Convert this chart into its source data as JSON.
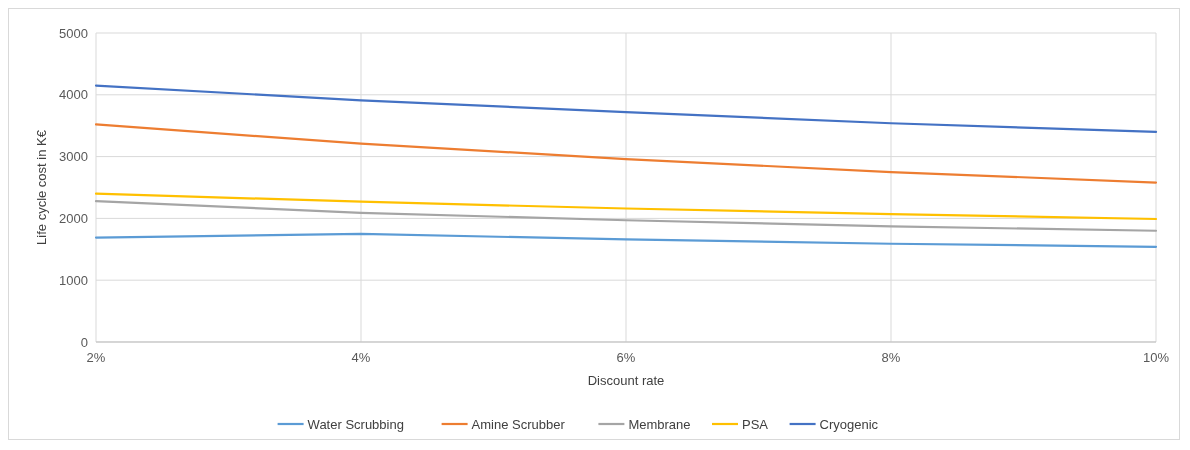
{
  "chart_data": {
    "type": "line",
    "xlabel": "Discount rate",
    "ylabel": "Life cycle cost in K€",
    "categories": [
      "2%",
      "4%",
      "6%",
      "8%",
      "10%"
    ],
    "series": [
      {
        "name": "Water Scrubbing",
        "color": "#5b9bd5",
        "values": [
          1690,
          1750,
          1660,
          1590,
          1540
        ]
      },
      {
        "name": "Amine Scrubber",
        "color": "#ed7d31",
        "values": [
          3520,
          3210,
          2960,
          2750,
          2580
        ]
      },
      {
        "name": "Membrane",
        "color": "#a5a5a5",
        "values": [
          2280,
          2090,
          1970,
          1870,
          1800
        ]
      },
      {
        "name": "PSA",
        "color": "#ffc000",
        "values": [
          2400,
          2270,
          2160,
          2070,
          1990
        ]
      },
      {
        "name": "Cryogenic",
        "color": "#4472c4",
        "values": [
          4150,
          3910,
          3720,
          3540,
          3400
        ]
      }
    ],
    "ylim": [
      0,
      5000
    ],
    "yticks": [
      0,
      1000,
      2000,
      3000,
      4000,
      5000
    ],
    "grid": true,
    "legend": "bottom",
    "marker": "none",
    "line_style": "solid"
  }
}
